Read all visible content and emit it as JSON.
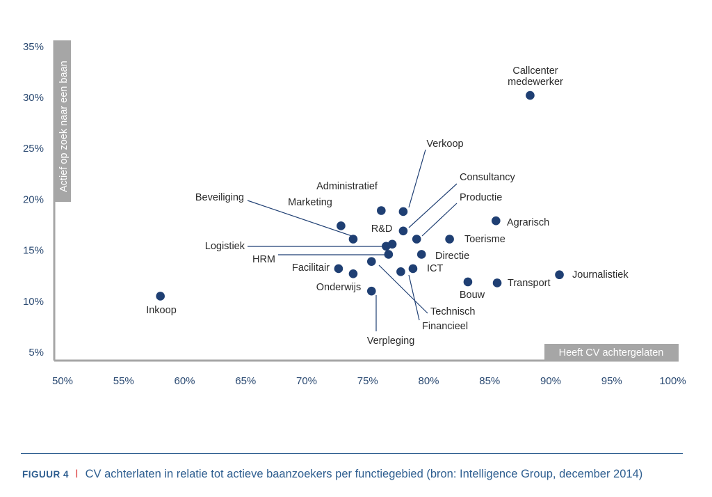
{
  "chart_data": {
    "type": "scatter",
    "xlabel": "Heeft CV achtergelaten",
    "ylabel": "Actief op zoek naar een baan",
    "xlim": [
      50,
      100
    ],
    "ylim": [
      5,
      35
    ],
    "x_ticks": [
      "50%",
      "55%",
      "60%",
      "65%",
      "70%",
      "75%",
      "80%",
      "85%",
      "90%",
      "95%",
      "100%"
    ],
    "y_ticks": [
      "5%",
      "10%",
      "15%",
      "20%",
      "25%",
      "30%",
      "35%"
    ],
    "point_color": "#1f3f73",
    "points": [
      {
        "label": "Callcenter medewerker",
        "x": 88.6,
        "y": 30.2
      },
      {
        "label": "Verkoop",
        "x": 78.2,
        "y": 18.8
      },
      {
        "label": "Consultancy",
        "x": 78.2,
        "y": 16.9
      },
      {
        "label": "Productie",
        "x": 79.3,
        "y": 16.1
      },
      {
        "label": "Administratief",
        "x": 76.4,
        "y": 18.9
      },
      {
        "label": "Marketing",
        "x": 73.1,
        "y": 17.4
      },
      {
        "label": "Beveiliging",
        "x": 74.1,
        "y": 16.1
      },
      {
        "label": "R&D",
        "x": 77.3,
        "y": 15.6
      },
      {
        "label": "Logistiek",
        "x": 76.8,
        "y": 15.4
      },
      {
        "label": "HRM",
        "x": 77.0,
        "y": 14.6
      },
      {
        "label": "Agrarisch",
        "x": 85.8,
        "y": 17.9
      },
      {
        "label": "Toerisme",
        "x": 82.0,
        "y": 16.1
      },
      {
        "label": "Directie",
        "x": 79.7,
        "y": 14.6
      },
      {
        "label": "ICT",
        "x": 79.0,
        "y": 13.2
      },
      {
        "label": "Technisch",
        "x": 75.6,
        "y": 13.9
      },
      {
        "label": "Financieel",
        "x": 78.0,
        "y": 12.9
      },
      {
        "label": "Facilitair",
        "x": 72.9,
        "y": 13.2
      },
      {
        "label": "Onderwijs",
        "x": 74.1,
        "y": 12.7
      },
      {
        "label": "Verpleging",
        "x": 75.6,
        "y": 11.0
      },
      {
        "label": "Bouw",
        "x": 83.5,
        "y": 11.9
      },
      {
        "label": "Transport",
        "x": 85.9,
        "y": 11.8
      },
      {
        "label": "Journalistiek",
        "x": 91.0,
        "y": 12.6
      },
      {
        "label": "Inkoop",
        "x": 58.3,
        "y": 10.5
      }
    ]
  },
  "caption": {
    "figure": "FIGUUR 4",
    "separator": "I",
    "text": "CV achterlaten in relatie tot actieve baanzoekers per functiegebied (bron: Intelligence Group, december 2014)"
  }
}
